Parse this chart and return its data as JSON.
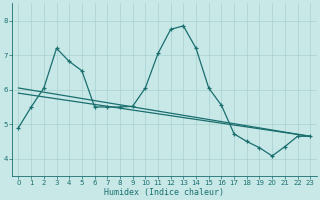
{
  "xlabel": "Humidex (Indice chaleur)",
  "bg_color": "#c8e8e8",
  "grid_color": "#b8d8d8",
  "line_color": "#1a6e6e",
  "xlim": [
    -0.5,
    23.5
  ],
  "ylim": [
    3.5,
    8.5
  ],
  "yticks": [
    4,
    5,
    6,
    7,
    8
  ],
  "xticks": [
    0,
    1,
    2,
    3,
    4,
    5,
    6,
    7,
    8,
    9,
    10,
    11,
    12,
    13,
    14,
    15,
    16,
    17,
    18,
    19,
    20,
    21,
    22,
    23
  ],
  "main_x": [
    0,
    1,
    2,
    3,
    4,
    5,
    6,
    7,
    8,
    9,
    10,
    11,
    12,
    13,
    14,
    15,
    16,
    17,
    18,
    19,
    20,
    21,
    22,
    23
  ],
  "main_y": [
    4.9,
    5.5,
    6.05,
    7.2,
    6.82,
    6.55,
    5.5,
    5.5,
    5.5,
    5.52,
    6.05,
    7.05,
    7.75,
    7.85,
    7.2,
    6.05,
    5.55,
    4.72,
    4.5,
    4.32,
    4.08,
    4.35,
    4.65,
    4.65
  ],
  "trend1_start_x": 0,
  "trend1_start_y": 5.9,
  "trend1_end_x": 23,
  "trend1_end_y": 4.65,
  "trend2_start_x": 0,
  "trend2_start_y": 6.05,
  "trend2_end_x": 23,
  "trend2_end_y": 4.65
}
